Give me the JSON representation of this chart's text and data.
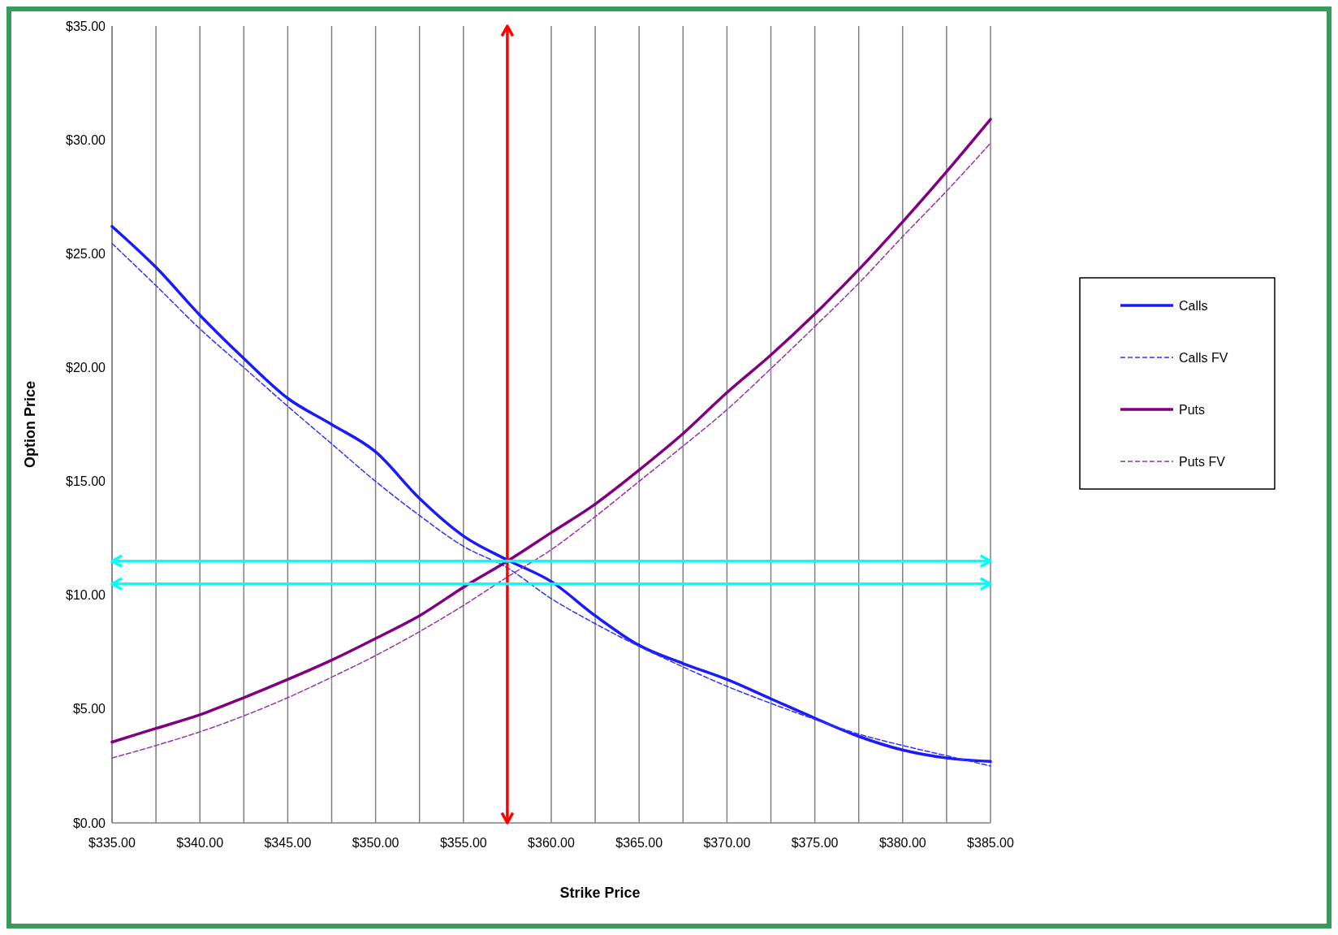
{
  "chart_data": {
    "type": "line",
    "xlabel": "Strike Price",
    "ylabel": "Option Price",
    "x": [
      335,
      337.5,
      340,
      342.5,
      345,
      347.5,
      350,
      352.5,
      355,
      357.5,
      360,
      362.5,
      365,
      367.5,
      370,
      372.5,
      375,
      377.5,
      380,
      382.5,
      385
    ],
    "series": [
      {
        "name": "Calls",
        "color": "#1a1aff",
        "line_style": "solid",
        "values": [
          26.2,
          24.4,
          22.3,
          20.4,
          18.65,
          17.5,
          16.3,
          14.25,
          12.6,
          11.55,
          10.6,
          9.1,
          7.8,
          7.0,
          6.3,
          5.45,
          4.6,
          3.8,
          3.2,
          2.85,
          2.7
        ]
      },
      {
        "name": "Calls FV",
        "color": "#3333ff",
        "line_style": "dashed",
        "values": [
          25.45,
          23.6,
          21.7,
          20.0,
          18.3,
          16.65,
          15.0,
          13.5,
          12.15,
          11.2,
          9.85,
          8.75,
          7.75,
          6.85,
          6.0,
          5.25,
          4.55,
          3.9,
          3.4,
          2.95,
          2.5
        ]
      },
      {
        "name": "Puts",
        "color": "#800080",
        "line_style": "solid",
        "values": [
          3.55,
          4.15,
          4.75,
          5.5,
          6.3,
          7.15,
          8.1,
          9.1,
          10.35,
          11.5,
          12.75,
          14.0,
          15.5,
          17.1,
          18.9,
          20.55,
          22.35,
          24.3,
          26.4,
          28.6,
          30.9
        ]
      },
      {
        "name": "Puts FV",
        "color": "#9933aa",
        "line_style": "dashed",
        "values": [
          2.85,
          3.4,
          4.0,
          4.7,
          5.5,
          6.4,
          7.35,
          8.4,
          9.55,
          10.8,
          12.0,
          13.45,
          15.0,
          16.55,
          18.15,
          19.95,
          21.8,
          23.7,
          25.75,
          27.75,
          29.85
        ]
      }
    ],
    "xlim": [
      335,
      385
    ],
    "xticks": [
      {
        "value": 335,
        "label": "$335.00"
      },
      {
        "value": 337.5,
        "label": null
      },
      {
        "value": 340,
        "label": "$340.00"
      },
      {
        "value": 342.5,
        "label": null
      },
      {
        "value": 345,
        "label": "$345.00"
      },
      {
        "value": 347.5,
        "label": null
      },
      {
        "value": 350,
        "label": "$350.00"
      },
      {
        "value": 352.5,
        "label": null
      },
      {
        "value": 355,
        "label": "$355.00"
      },
      {
        "value": 357.5,
        "label": null
      },
      {
        "value": 360,
        "label": "$360.00"
      },
      {
        "value": 362.5,
        "label": null
      },
      {
        "value": 365,
        "label": "$365.00"
      },
      {
        "value": 367.5,
        "label": null
      },
      {
        "value": 370,
        "label": "$370.00"
      },
      {
        "value": 372.5,
        "label": null
      },
      {
        "value": 375,
        "label": "$375.00"
      },
      {
        "value": 377.5,
        "label": null
      },
      {
        "value": 380,
        "label": "$380.00"
      },
      {
        "value": 382.5,
        "label": null
      },
      {
        "value": 385,
        "label": "$385.00"
      }
    ],
    "ylim": [
      0,
      35
    ],
    "yticks": [
      {
        "value": 0,
        "label": "$0.00"
      },
      {
        "value": 5,
        "label": "$5.00"
      },
      {
        "value": 10,
        "label": "$10.00"
      },
      {
        "value": 15,
        "label": "$15.00"
      },
      {
        "value": 20,
        "label": "$20.00"
      },
      {
        "value": 25,
        "label": "$25.00"
      },
      {
        "value": 30,
        "label": "$30.00"
      },
      {
        "value": 35,
        "label": "$35.00"
      }
    ],
    "ref_lines": [
      {
        "axis": "x",
        "value": 357.5,
        "color": "#ff0000"
      },
      {
        "axis": "y",
        "value": 11.5,
        "color": "#00ffff"
      },
      {
        "axis": "y",
        "value": 10.5,
        "color": "#00ffff"
      }
    ],
    "grid": "x",
    "legend": "right"
  }
}
